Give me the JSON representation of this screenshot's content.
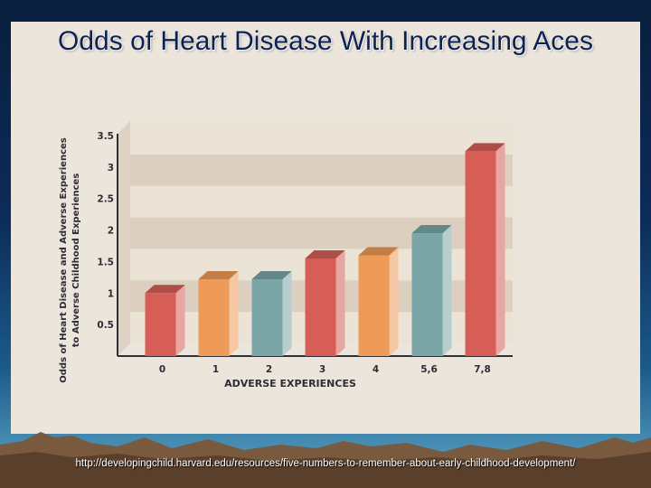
{
  "slide": {
    "title": "Odds of Heart Disease With Increasing Aces",
    "source": "http://developingchild.harvard.edu/resources/five-numbers-to-remember-about-early-childhood-development/"
  },
  "chart_data": {
    "type": "bar",
    "categories": [
      "0",
      "1",
      "2",
      "3",
      "4",
      "5,6",
      "7,8"
    ],
    "values": [
      1.0,
      1.22,
      1.22,
      1.55,
      1.6,
      1.95,
      3.25
    ],
    "colors": [
      "#d65e57",
      "#ee9a58",
      "#7aa6a8",
      "#d65e57",
      "#ee9a58",
      "#7aa6a8",
      "#d65e57"
    ],
    "ylabel_line1": "Odds of Heart Disease and Adverse Experiences",
    "ylabel_line2": "to Adverse Childhood Experiences",
    "xlabel": "ADVERSE EXPERIENCES",
    "yticks": [
      "0.5",
      "1",
      "1.5",
      "2",
      "2.5",
      "3",
      "3.5"
    ],
    "ylim": [
      0,
      3.5
    ],
    "grid": "alternating bands"
  }
}
